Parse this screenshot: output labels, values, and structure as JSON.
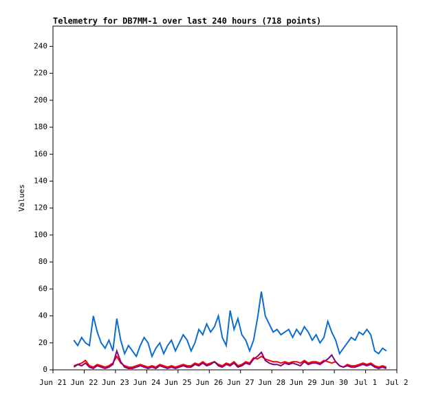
{
  "chart_data": {
    "type": "line",
    "title": "Telemetry for DB7MM-1 over last 240 hours (718 points)",
    "y_label": "Values",
    "x": [
      16,
      19,
      22,
      25,
      28,
      31,
      34,
      37,
      40,
      43,
      46,
      49,
      52,
      55,
      58,
      61,
      64,
      67,
      70,
      73,
      76,
      79,
      82,
      85,
      88,
      91,
      94,
      97,
      100,
      103,
      106,
      109,
      112,
      115,
      118,
      121,
      124,
      127,
      130,
      133,
      136,
      139,
      142,
      145,
      148,
      151,
      154,
      157,
      160,
      163,
      166,
      169,
      172,
      175,
      178,
      181,
      184,
      187,
      190,
      193,
      196,
      199,
      202,
      205,
      208,
      211,
      214,
      217,
      220,
      223,
      226,
      229,
      232,
      235,
      238,
      241,
      244,
      247,
      250,
      253,
      256
    ],
    "series": [
      {
        "color": "#0a6ccc",
        "values": [
          22,
          18,
          24,
          20,
          18,
          40,
          28,
          20,
          16,
          22,
          14,
          38,
          22,
          12,
          18,
          14,
          10,
          18,
          24,
          20,
          10,
          16,
          20,
          12,
          18,
          22,
          14,
          20,
          26,
          22,
          14,
          20,
          30,
          26,
          34,
          28,
          32,
          40,
          24,
          18,
          44,
          30,
          38,
          26,
          22,
          14,
          22,
          38,
          58,
          40,
          34,
          28,
          30,
          26,
          28,
          30,
          24,
          30,
          26,
          32,
          28,
          22,
          26,
          20,
          24,
          36,
          28,
          22,
          12,
          16,
          20,
          24,
          22,
          28,
          26,
          30,
          26,
          14,
          12,
          16,
          14
        ]
      },
      {
        "color": "#ff0000",
        "values": [
          3,
          4,
          5,
          7,
          3,
          2,
          4,
          3,
          2,
          3,
          5,
          10,
          5,
          3,
          2,
          2,
          3,
          4,
          3,
          2,
          3,
          2,
          4,
          3,
          2,
          3,
          2,
          3,
          4,
          3,
          3,
          5,
          4,
          6,
          4,
          5,
          6,
          4,
          3,
          5,
          4,
          6,
          3,
          4,
          6,
          5,
          9,
          8,
          10,
          8,
          7,
          6,
          6,
          5,
          6,
          5,
          6,
          6,
          5,
          7,
          5,
          6,
          6,
          5,
          7,
          6,
          5,
          6,
          3,
          2,
          4,
          3,
          3,
          4,
          5,
          4,
          5,
          3,
          2,
          3,
          2
        ]
      },
      {
        "color": "#800080",
        "values": [
          2,
          4,
          3,
          5,
          2,
          1,
          3,
          2,
          1,
          2,
          4,
          14,
          6,
          2,
          1,
          1,
          2,
          3,
          2,
          1,
          2,
          1,
          3,
          2,
          1,
          2,
          1,
          2,
          3,
          2,
          2,
          4,
          3,
          5,
          3,
          4,
          6,
          3,
          2,
          4,
          3,
          5,
          2,
          3,
          5,
          4,
          8,
          10,
          13,
          7,
          5,
          4,
          4,
          3,
          5,
          4,
          5,
          4,
          3,
          6,
          4,
          5,
          5,
          4,
          6,
          8,
          11,
          6,
          3,
          2,
          3,
          2,
          2,
          3,
          4,
          3,
          4,
          2,
          1,
          2,
          1
        ]
      }
    ],
    "xlim": [
      0,
      264
    ],
    "xticks": [
      {
        "value": 0,
        "label": "Jun 21"
      },
      {
        "value": 24,
        "label": "Jun 22"
      },
      {
        "value": 48,
        "label": "Jun 23"
      },
      {
        "value": 72,
        "label": "Jun 24"
      },
      {
        "value": 96,
        "label": "Jun 25"
      },
      {
        "value": 120,
        "label": "Jun 26"
      },
      {
        "value": 144,
        "label": "Jun 27"
      },
      {
        "value": 168,
        "label": "Jun 28"
      },
      {
        "value": 192,
        "label": "Jun 29"
      },
      {
        "value": 216,
        "label": "Jun 30"
      },
      {
        "value": 240,
        "label": "Jul 1"
      },
      {
        "value": 264,
        "label": "Jul 2"
      }
    ],
    "ylim": [
      0,
      255
    ],
    "yticks": [
      0,
      20,
      40,
      60,
      80,
      100,
      120,
      140,
      160,
      180,
      200,
      220,
      240
    ],
    "grid": false
  }
}
